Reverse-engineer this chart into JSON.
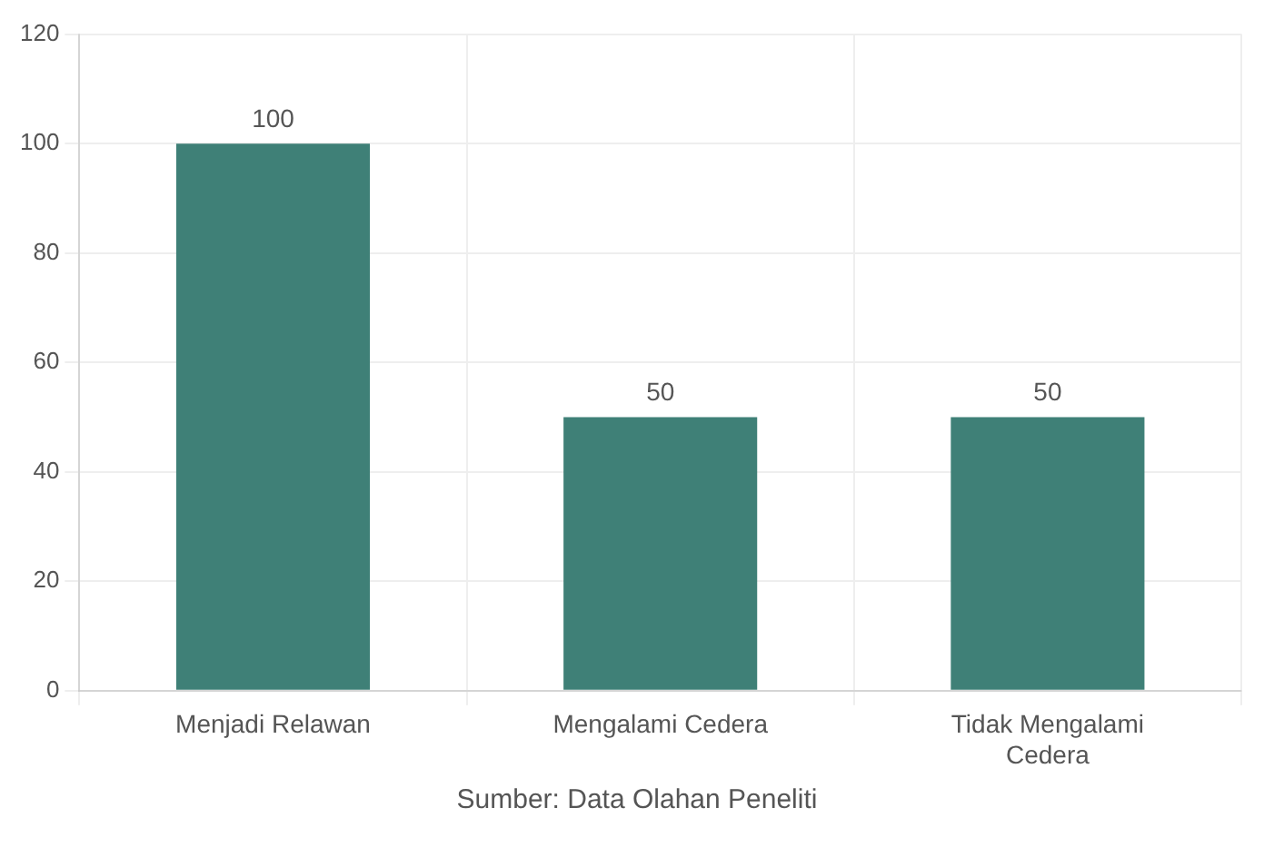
{
  "chart_data": {
    "type": "bar",
    "categories": [
      "Menjadi Relawan",
      "Mengalami Cedera",
      [
        "Tidak Mengalami",
        "Cedera"
      ]
    ],
    "values": [
      100,
      50,
      50
    ],
    "color": "#3f8077",
    "data_labels": true,
    "ylim": [
      0,
      120
    ],
    "yticks": [
      0,
      20,
      40,
      60,
      80,
      100,
      120
    ],
    "grid": true,
    "annotations": [
      "Sumber: Data Olahan Peneliti"
    ]
  }
}
